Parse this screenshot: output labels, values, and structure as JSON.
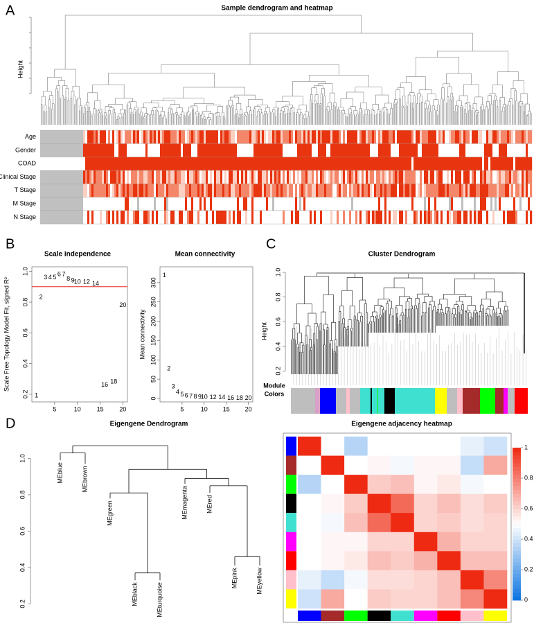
{
  "chart_data": [
    {
      "type": "sample-dendrogram-heatmap",
      "panel": "A",
      "title": "Sample dendrogram and heatmap",
      "y_label": "Height",
      "traits": [
        "Age",
        "Gender",
        "COAD",
        "Clinical Stage",
        "T Stage",
        "M Stage",
        "N Stage"
      ]
    },
    {
      "type": "scatter-text",
      "panel": "B",
      "title": "Scale independence",
      "y_label": "Scale Free Topology Model Fit, signed R²",
      "x": [
        1,
        2,
        3,
        4,
        5,
        6,
        7,
        8,
        9,
        10,
        12,
        14,
        16,
        18,
        20
      ],
      "values": [
        0.19,
        0.83,
        0.96,
        0.96,
        0.96,
        0.98,
        0.98,
        0.95,
        0.94,
        0.93,
        0.93,
        0.92,
        0.26,
        0.28,
        0.78
      ],
      "color": "#e8231c",
      "hline": {
        "value": 0.9,
        "color": "#e8231c"
      },
      "xlim": [
        0,
        21
      ],
      "xticks": [
        5,
        10,
        15,
        20
      ],
      "ylim": [
        0.15,
        1.03
      ],
      "yticks": [
        0.2,
        0.4,
        0.6,
        0.8,
        {
          "value": 1,
          "label": "1.0"
        }
      ]
    },
    {
      "type": "scatter-text",
      "title": "Mean connectivity",
      "y_label": "Mean connectivity",
      "x": [
        1,
        2,
        3,
        4,
        5,
        6,
        7,
        8,
        9,
        10,
        12,
        14,
        16,
        18,
        20
      ],
      "values": [
        318,
        77,
        30,
        16,
        10,
        7,
        5,
        4,
        3,
        3,
        2,
        2,
        1,
        1,
        1
      ],
      "color": "#e8231c",
      "xlim": [
        0,
        21
      ],
      "xticks": [
        5,
        10,
        15,
        20
      ],
      "ylim": [
        -9,
        341
      ],
      "yticks": [
        0,
        50,
        100,
        150,
        200,
        250,
        300
      ]
    },
    {
      "type": "cluster-dendrogram",
      "panel": "C",
      "title": "Cluster Dendrogram",
      "y_label": "Height",
      "ylim": [
        0.09,
        1.0
      ],
      "yticks": [
        0.2,
        0.4,
        0.6,
        0.8,
        {
          "value": 1,
          "label": "1.0"
        }
      ],
      "module_label": [
        "Module",
        "Colors"
      ]
    },
    {
      "type": "eigengene-dendrogram",
      "panel": "D",
      "title": "Eigengene Dendrogram",
      "ylim": [
        0.11,
        1.12
      ],
      "yticks": [
        0.2,
        0.4,
        0.6,
        0.8,
        {
          "value": 1,
          "label": "1.0"
        }
      ],
      "tree": {
        "height": 1.07,
        "children": [
          {
            "height": 1.03,
            "children": [
              {
                "label": "MEblue",
                "height": 0.99
              },
              {
                "label": "MEbrown",
                "height": 0.97
              }
            ]
          },
          {
            "height": 1.0,
            "children": [
              {
                "height": 0.94,
                "children": [
                  {
                    "height": 0.81,
                    "children": [
                      {
                        "label": "MEgreen",
                        "height": 0.78
                      },
                      {
                        "height": 0.37,
                        "children": [
                          {
                            "label": "MEblack",
                            "height": 0.33
                          },
                          {
                            "label": "MEturquoise",
                            "height": 0.33
                          }
                        ]
                      }
                    ]
                  },
                  {
                    "height": 0.89,
                    "children": [
                      {
                        "label": "MEmagenta",
                        "height": 0.86
                      },
                      {
                        "height": 0.85,
                        "children": [
                          {
                            "label": "MEred",
                            "height": 0.81
                          },
                          {
                            "height": 0.46,
                            "children": [
                              {
                                "label": "MEpink",
                                "height": 0.41
                              },
                              {
                                "label": "MEyellow",
                                "height": 0.41
                              }
                            ]
                          }
                        ]
                      }
                    ]
                  }
                ]
              }
            ]
          }
        ]
      }
    },
    {
      "type": "heatmap",
      "title": "Eigengene adjacency heatmap",
      "row_colors": [
        "#0000ff",
        "#a52a2a",
        "#00ff00",
        "#000000",
        "#40e0d0",
        "#ff00ff",
        "#ff0000",
        "#ffc0cb",
        "#ffff00"
      ],
      "matrix": [
        [
          1,
          0.5,
          0.35,
          0.5,
          0.5,
          0.5,
          0.5,
          0.45,
          0.4
        ],
        [
          0.5,
          1,
          0.5,
          0.52,
          0.48,
          0.52,
          0.52,
          0.38,
          0.7
        ],
        [
          0.35,
          0.5,
          1,
          0.62,
          0.65,
          0.52,
          0.55,
          0.48,
          0.5
        ],
        [
          0.5,
          0.52,
          0.62,
          1,
          0.85,
          0.6,
          0.65,
          0.58,
          0.62
        ],
        [
          0.5,
          0.48,
          0.65,
          0.85,
          1,
          0.6,
          0.62,
          0.58,
          0.6
        ],
        [
          0.5,
          0.52,
          0.52,
          0.6,
          0.6,
          1,
          0.68,
          0.6,
          0.6
        ],
        [
          0.5,
          0.52,
          0.55,
          0.65,
          0.62,
          0.68,
          1,
          0.65,
          0.65
        ],
        [
          0.45,
          0.38,
          0.48,
          0.58,
          0.58,
          0.6,
          0.65,
          1,
          0.78
        ],
        [
          0.4,
          0.7,
          0.5,
          0.62,
          0.6,
          0.6,
          0.65,
          0.78,
          1
        ]
      ],
      "colorscale": [
        "#0a72e0",
        "#ffffff",
        "#ee2a12"
      ],
      "zlim": [
        0,
        1
      ],
      "zticks": [
        0,
        0.2,
        0.4,
        0.6,
        0.8,
        1
      ]
    }
  ]
}
